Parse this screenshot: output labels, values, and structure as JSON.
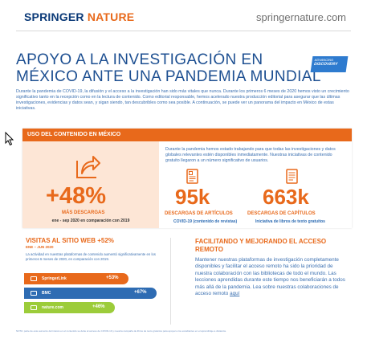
{
  "header": {
    "brand_springer": "SPRINGER",
    "brand_nature": "NATURE",
    "site": "springernature.com"
  },
  "title": {
    "line1": "APOYO A LA INVESTIGACIÓN EN",
    "line2": "MÉXICO ANTE UNA PANDEMIA MUNDIAL"
  },
  "badge": {
    "top": "ADVANCING",
    "main": "DISCOVERY"
  },
  "intro": "Durante la pandemia de COVID-19, la difusión y el acceso a la investigación han sido más vitales que nunca. Durante los primeros 6 meses de 2020 hemos visto un crecimiento significativo tanto en la recepción como en la lectura de contenido. Como editorial responsable, hemos acelerado nuestra producción editorial para asegurar que las últimas investigaciones, evidencias y datos sean, y sigan siendo, tan descubribles como sea posible. A continuación, se puede ver un panorama del impacto en México de estas iniciativas.",
  "content_panel": {
    "heading": "USO DEL CONTENIDO EN MÉXICO",
    "description": "Durante la pandemia hemos estado trabajando para que todas las investigaciones y datos globales relevantes estén disponibles inmediatamente. Nuestras iniciativas de contenido gratuito llegaron a un número significativo de usuarios.",
    "downloads": {
      "value": "+48%",
      "label": "MÁS DESCARGAS",
      "sub": "ene - sep 2020 en comparación con 2019"
    },
    "articles": {
      "value": "95k",
      "label": "DESCARGAS DE ARTÍCULOS",
      "sub": "COVID-19 (contenido de revistas)"
    },
    "chapters": {
      "value": "663k",
      "label": "DESCARGAS DE CAPÍTULOS",
      "sub": "Iniciativa de libros de texto gratuitos"
    }
  },
  "visits": {
    "title": "VISITAS AL SITIO WEB +52%",
    "date": "ENE – JUN 2020",
    "desc": "La actividad en nuestras plataformas de contenido aumentó significativamente en los primeros 6 meses de 2020, en comparación con 2019.",
    "bars": [
      {
        "label": "SpringerLink",
        "value": "+53%",
        "fraction": 0.53,
        "color": "#e8691b"
      },
      {
        "label": "BMC",
        "value": "+67%",
        "fraction": 0.67,
        "color": "#2e6cb3"
      },
      {
        "label": "nature.com",
        "value": "+46%",
        "fraction": 0.46,
        "color": "#9ccc3a"
      }
    ]
  },
  "remote": {
    "title": "FACILITANDO Y MEJORANDO EL ACCESO REMOTO",
    "body": "Mantener nuestras plataformas de investigación completamente disponibles y facilitar el acceso remoto ha sido la prioridad de nuestra colaboración con las bibliotecas de todo el mundo. Las lecciones aprendidas durante este tiempo nos beneficiarán a todos más allá de la pandemia. Lea sobre nuestras colaboraciones de acceso remoto",
    "link": "aquí"
  },
  "note": "NOTA: parte de este aumento del interés en el contenido se debe al acceso de COVID-19 y nuestra campaña de libros de texto gratuitos para apoyar a los estudiantes en el aprendizaje a distancia."
}
